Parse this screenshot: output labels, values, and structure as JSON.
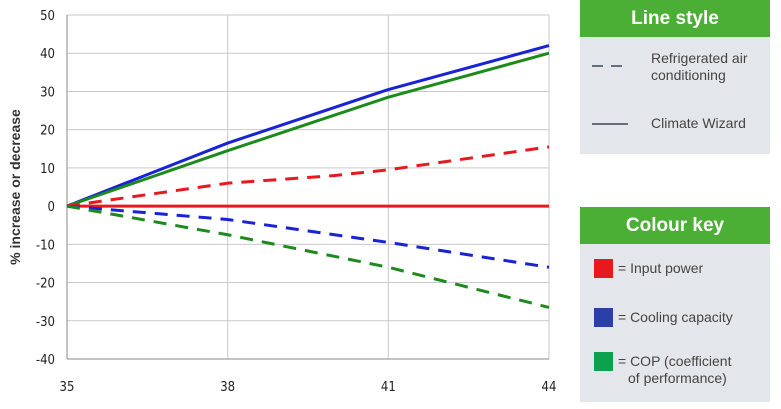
{
  "chart_data": {
    "type": "line",
    "ylabel": "% increase or decrease",
    "xlabel": "",
    "x_ticks": [
      35,
      38,
      41,
      44
    ],
    "y_ticks": [
      50,
      40,
      30,
      20,
      10,
      0,
      -10,
      -20,
      -30,
      -40
    ],
    "xlim": [
      35,
      44
    ],
    "ylim": [
      -40,
      50
    ],
    "grid": true,
    "series": [
      {
        "key": "cw_cooling",
        "color": "#1a22d6",
        "style": "solid",
        "x": [
          35,
          38,
          41,
          44
        ],
        "y": [
          0,
          16.5,
          30.5,
          42
        ]
      },
      {
        "key": "cw_cop",
        "color": "#1e8a1e",
        "style": "solid",
        "x": [
          35,
          38,
          41,
          44
        ],
        "y": [
          0,
          14.5,
          28.5,
          40
        ]
      },
      {
        "key": "rac_input",
        "color": "#e8191e",
        "style": "dashed",
        "x": [
          35,
          38,
          40,
          41,
          44
        ],
        "y": [
          0,
          6,
          8,
          9.5,
          15.5
        ]
      },
      {
        "key": "cw_input",
        "color": "#e8191e",
        "style": "solid",
        "x": [
          35,
          44
        ],
        "y": [
          0,
          0
        ]
      },
      {
        "key": "rac_cooling",
        "color": "#1a22d6",
        "style": "dashed",
        "x": [
          35,
          38,
          41,
          44
        ],
        "y": [
          0,
          -3.5,
          -9.5,
          -16
        ]
      },
      {
        "key": "rac_cop",
        "color": "#1e8a1e",
        "style": "dashed",
        "x": [
          35,
          38,
          41,
          44
        ],
        "y": [
          0,
          -7.5,
          -16,
          -26.5
        ]
      }
    ]
  },
  "line_style_panel": {
    "title": "Line style",
    "items": [
      {
        "style": "dashed",
        "label_lines": [
          "Refrigerated air",
          "conditioning"
        ]
      },
      {
        "style": "solid",
        "label_lines": [
          "Climate Wizard"
        ]
      }
    ]
  },
  "colour_key_panel": {
    "title": "Colour key",
    "items": [
      {
        "color": "#e8191e",
        "label_lines": [
          "= Input power"
        ]
      },
      {
        "color": "#2a3fa8",
        "label_lines": [
          "= Cooling capacity"
        ]
      },
      {
        "color": "#0aa24d",
        "label_lines": [
          "= COP (coefficient",
          "of performance)"
        ]
      }
    ]
  },
  "colors": {
    "panel_header": "#4caf35",
    "panel_bg": "#e3e7ec",
    "grid": "#c9c9c9",
    "axis": "#888888"
  }
}
